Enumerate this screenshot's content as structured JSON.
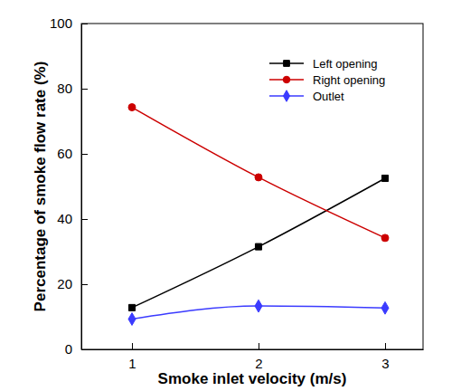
{
  "chart_data": {
    "type": "line",
    "x_label": "Smoke inlet velocity (m/s)",
    "y_label": "Percentage of smoke flow rate (%)",
    "x": [
      1,
      2,
      3
    ],
    "xlim": [
      0.6,
      3.3
    ],
    "xticks": [
      1,
      2,
      3
    ],
    "ylim": [
      0,
      100
    ],
    "yticks": [
      0,
      20,
      40,
      60,
      80,
      100
    ],
    "grid": false,
    "legend": "upper right",
    "series": [
      {
        "name": "Left opening",
        "color": "#000000",
        "marker": "square",
        "line_style": "solid",
        "values": [
          12.8,
          31.5,
          52.5
        ]
      },
      {
        "name": "Right opening",
        "color": "#cc0000",
        "marker": "circle",
        "line_style": "solid",
        "values": [
          74.3,
          52.8,
          34.2
        ]
      },
      {
        "name": "Outlet",
        "color": "#3b3bff",
        "marker": "diamond",
        "line_style": "solid",
        "values": [
          9.3,
          13.3,
          12.7
        ]
      }
    ]
  }
}
